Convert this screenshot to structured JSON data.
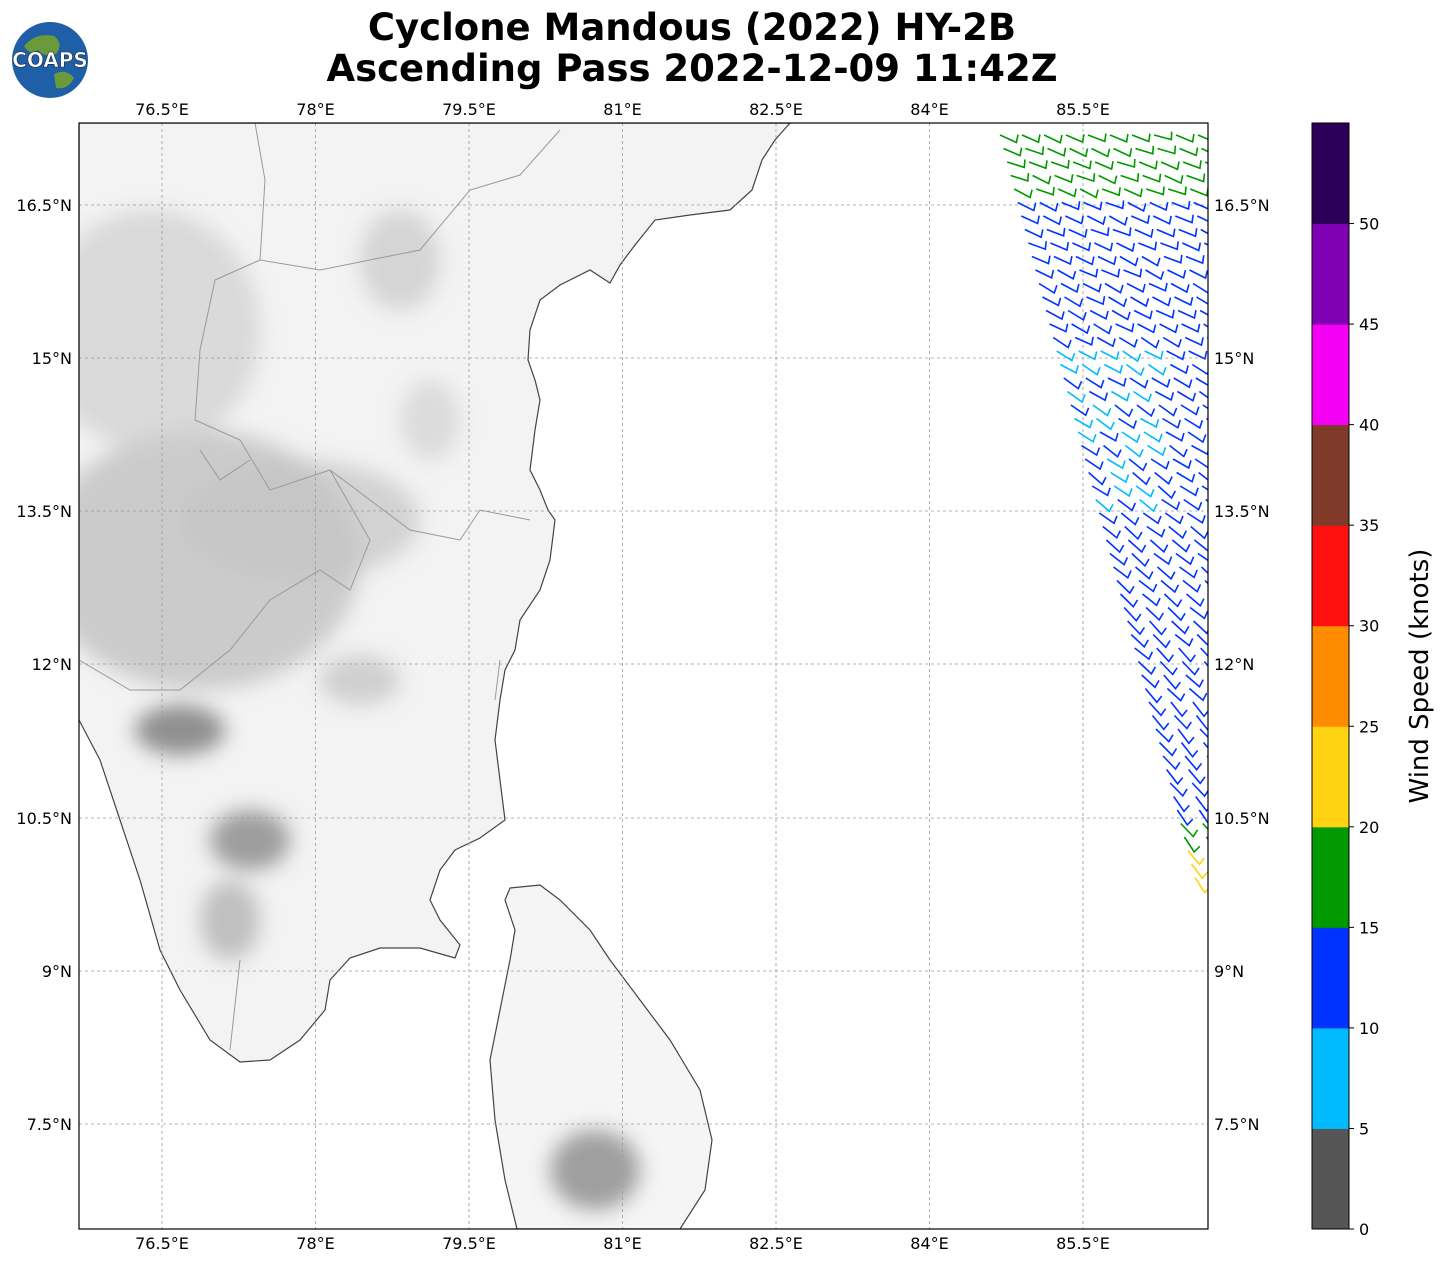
{
  "header": {
    "title_line1": "Cyclone Mandous (2022) HY-2B",
    "title_line2": "Ascending Pass 2022-12-09 11:42Z"
  },
  "logo": {
    "text": "COAPS"
  },
  "map": {
    "lon_ticks": [
      "76.5°E",
      "78°E",
      "79.5°E",
      "81°E",
      "82.5°E",
      "84°E",
      "85.5°E"
    ],
    "lat_ticks": [
      "16.5°N",
      "15°N",
      "13.5°N",
      "12°N",
      "10.5°N",
      "9°N",
      "7.5°N"
    ]
  },
  "colorbar": {
    "label": "Wind Speed (knots)",
    "ticks": [
      "0",
      "5",
      "10",
      "15",
      "20",
      "25",
      "30",
      "35",
      "40",
      "45",
      "50"
    ],
    "colors": [
      "#555555",
      "#00bbff",
      "#0033ff",
      "#009900",
      "#ffd311",
      "#ff8c00",
      "#ff1010",
      "#7f3a2a",
      "#f400f4",
      "#8000b4",
      "#2c0058"
    ]
  }
}
